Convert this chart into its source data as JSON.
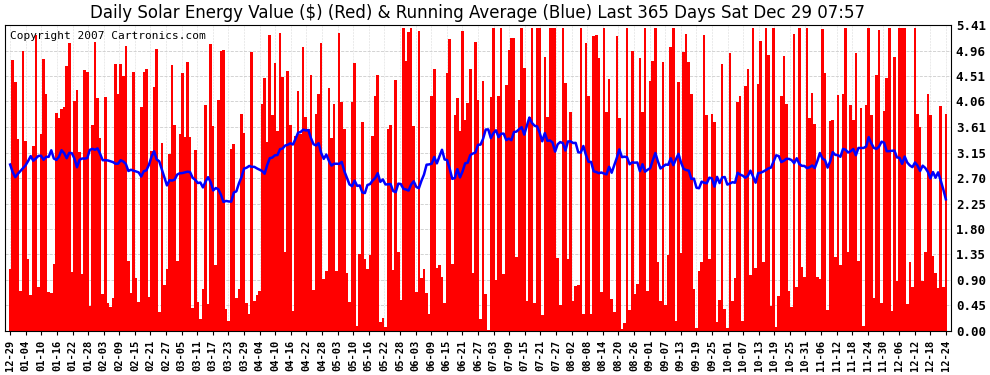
{
  "title": "Daily Solar Energy Value ($) (Red) & Running Average (Blue) Last 365 Days Sat Dec 29 07:57",
  "copyright": "Copyright 2007 Cartronics.com",
  "background_color": "#ffffff",
  "bar_color": "red",
  "line_color": "blue",
  "ylim": [
    0,
    5.41
  ],
  "yticks": [
    0.0,
    0.45,
    0.9,
    1.35,
    1.8,
    2.25,
    2.7,
    3.15,
    3.61,
    4.06,
    4.51,
    4.96,
    5.41
  ],
  "xtick_labels": [
    "12-29",
    "01-04",
    "01-10",
    "01-16",
    "01-22",
    "01-28",
    "02-03",
    "02-09",
    "02-15",
    "02-21",
    "02-27",
    "03-05",
    "03-11",
    "03-17",
    "03-23",
    "03-29",
    "04-04",
    "04-10",
    "04-16",
    "04-22",
    "04-28",
    "05-03",
    "05-10",
    "05-16",
    "05-22",
    "05-28",
    "06-03",
    "06-09",
    "06-15",
    "06-21",
    "06-27",
    "07-03",
    "07-09",
    "07-15",
    "07-21",
    "07-27",
    "08-02",
    "08-08",
    "08-14",
    "08-20",
    "08-26",
    "09-01",
    "09-07",
    "09-13",
    "09-19",
    "09-25",
    "10-01",
    "10-07",
    "10-13",
    "10-19",
    "10-25",
    "10-31",
    "11-06",
    "11-12",
    "11-18",
    "11-24",
    "11-30",
    "12-06",
    "12-12",
    "12-18",
    "12-24"
  ],
  "grid_color": "#cccccc",
  "title_fontsize": 12,
  "copyright_fontsize": 8
}
